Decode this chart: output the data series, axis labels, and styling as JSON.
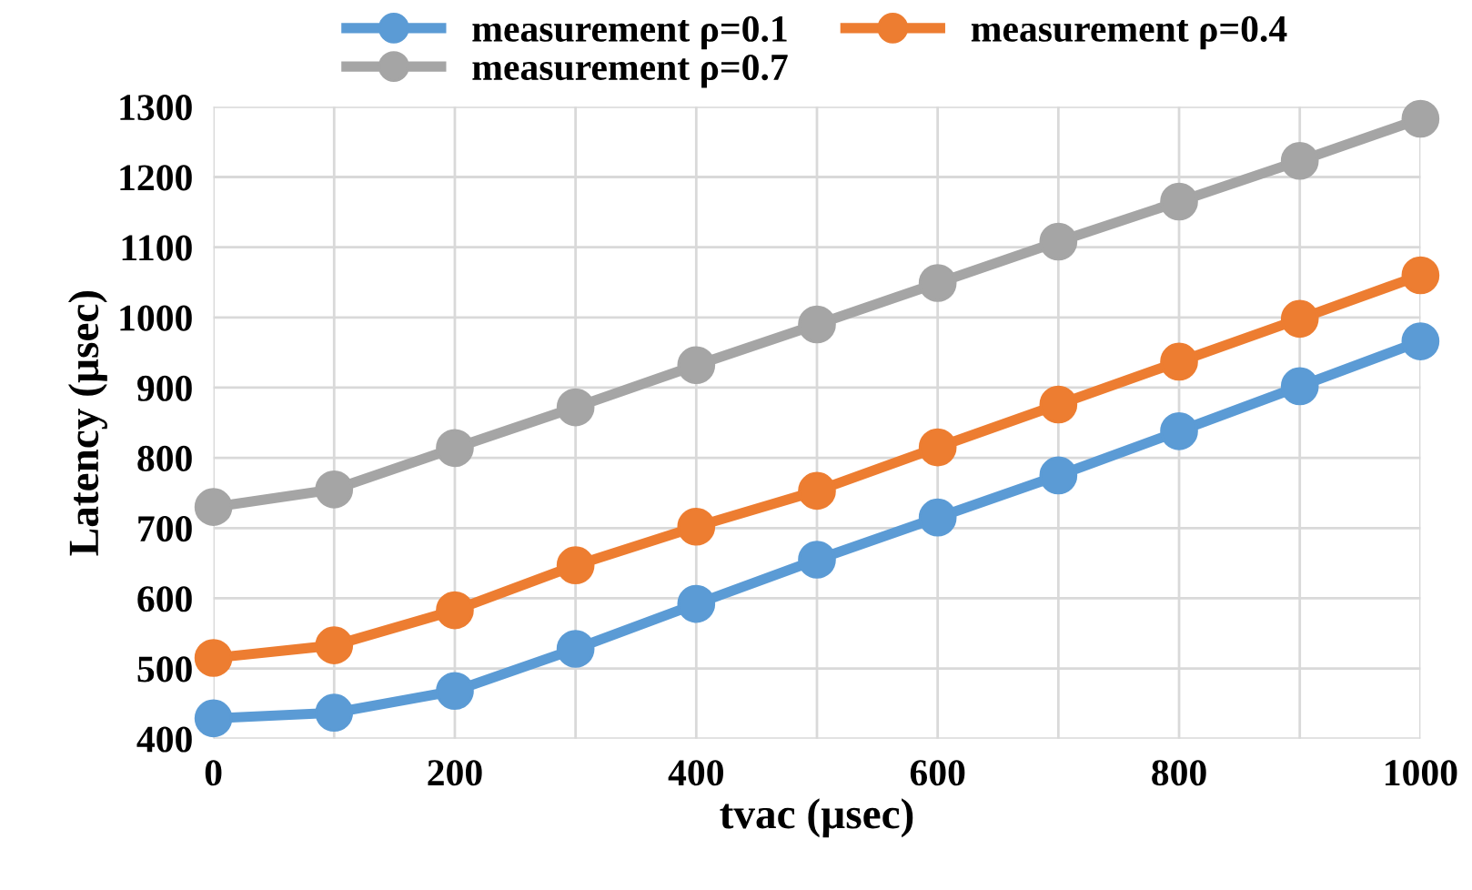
{
  "chart_data": {
    "type": "line",
    "xlabel": "tvac (µsec)",
    "ylabel": "Latency (µsec)",
    "x": [
      0,
      100,
      200,
      300,
      400,
      500,
      600,
      700,
      800,
      900,
      1000
    ],
    "series": [
      {
        "name": "measurement ρ=0.1",
        "color": "#5b9bd5",
        "values": [
          429,
          437,
          468,
          528,
          592,
          655,
          715,
          775,
          838,
          902,
          966
        ]
      },
      {
        "name": "measurement ρ=0.4",
        "color": "#ed7d31",
        "values": [
          515,
          533,
          583,
          647,
          702,
          753,
          815,
          876,
          937,
          998,
          1060
        ]
      },
      {
        "name": "measurement ρ=0.7",
        "color": "#a5a5a5",
        "values": [
          730,
          755,
          814,
          872,
          932,
          990,
          1049,
          1108,
          1165,
          1223,
          1283
        ]
      }
    ],
    "xlim": [
      0,
      1000
    ],
    "xticks": [
      0,
      {
        "value": 100,
        "label": null
      },
      200,
      {
        "value": 300,
        "label": null
      },
      400,
      {
        "value": 500,
        "label": null
      },
      600,
      {
        "value": 700,
        "label": null
      },
      800,
      {
        "value": 900,
        "label": null
      },
      1000
    ],
    "ylim": [
      400,
      1300
    ],
    "yticks": [
      400,
      500,
      600,
      700,
      800,
      900,
      1000,
      1100,
      1200,
      1300
    ],
    "grid": true,
    "legend": "top",
    "marker": "circle",
    "line_style": "solid"
  }
}
